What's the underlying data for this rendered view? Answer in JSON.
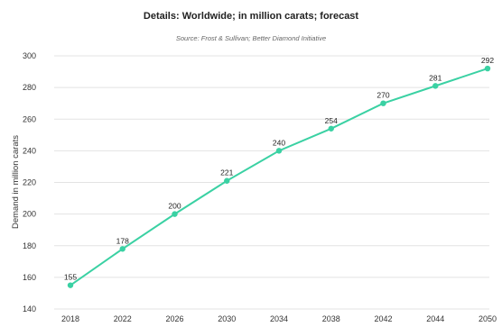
{
  "chart_data": {
    "type": "line",
    "title": "Details: Worldwide; in million carats; forecast",
    "subtitle": "Source: Frost & Sullivan; Better Diamond Initiative",
    "xlabel": "",
    "ylabel": "Demand in million carats",
    "categories": [
      "2018",
      "2022",
      "2026",
      "2030",
      "2034",
      "2038",
      "2042",
      "2044",
      "2050"
    ],
    "series": [
      {
        "values": [
          155,
          178,
          200,
          221,
          240,
          254,
          270,
          281,
          292
        ]
      }
    ],
    "yticks": [
      140,
      160,
      180,
      200,
      220,
      240,
      260,
      280,
      300
    ],
    "ylim": [
      140,
      300
    ],
    "grid": true,
    "legend": "none",
    "color": "#3ad1a3"
  }
}
